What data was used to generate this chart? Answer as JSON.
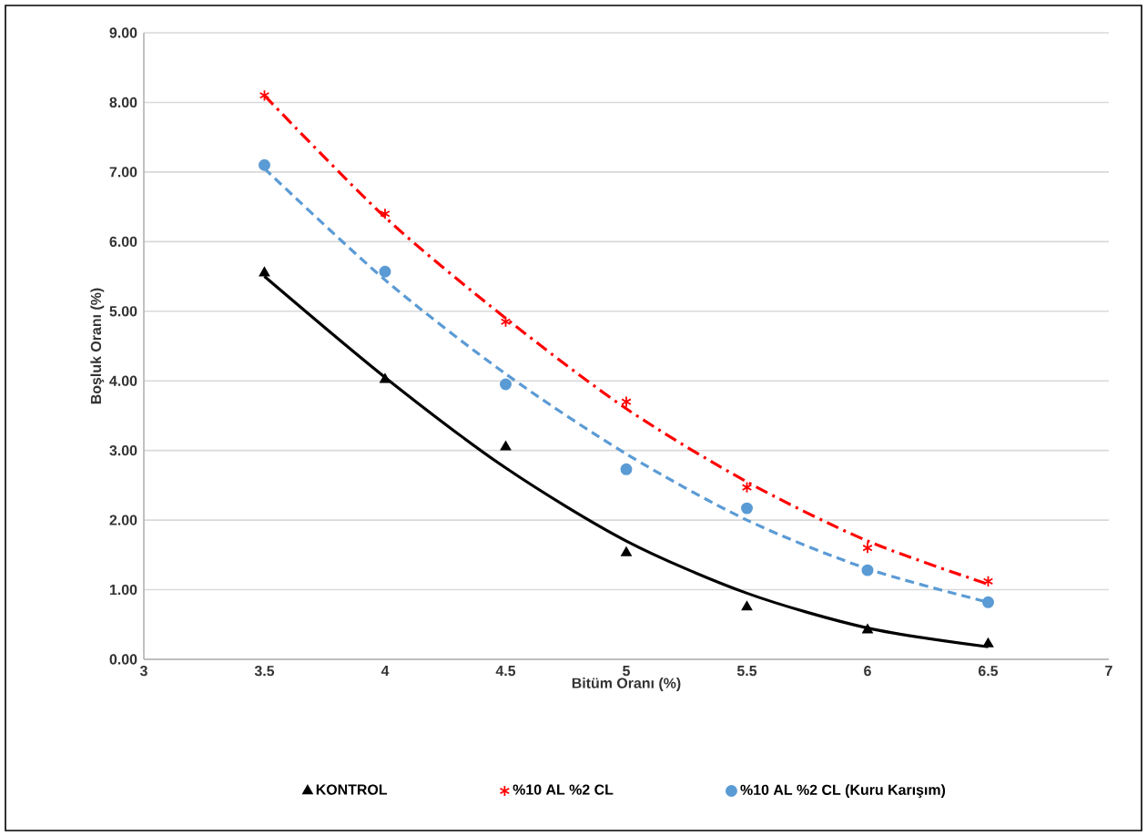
{
  "chart_data": {
    "type": "scatter",
    "xlabel": "Bitüm Oranı (%)",
    "ylabel": "Boşluk Oranı (%)",
    "xlim": [
      3,
      7
    ],
    "xticks": [
      3,
      3.5,
      4,
      4.5,
      5,
      5.5,
      6,
      6.5,
      7
    ],
    "ylim": [
      0,
      9
    ],
    "yticks": [
      {
        "value": 0,
        "label": "0.00"
      },
      {
        "value": 1,
        "label": "1.00"
      },
      {
        "value": 2,
        "label": "2.00"
      },
      {
        "value": 3,
        "label": "3.00"
      },
      {
        "value": 4,
        "label": "4.00"
      },
      {
        "value": 5,
        "label": "5.00"
      },
      {
        "value": 6,
        "label": "6.00"
      },
      {
        "value": 7,
        "label": "7.00"
      },
      {
        "value": 8,
        "label": "8.00"
      },
      {
        "value": 9,
        "label": "9.00"
      }
    ],
    "grid": "y",
    "legend": "bottom",
    "x": [
      3.5,
      4,
      4.5,
      5,
      5.5,
      6,
      6.5
    ],
    "series": [
      {
        "name": "KONTROL",
        "marker": "triangle",
        "color": "#000000",
        "values": [
          5.55,
          4.02,
          3.05,
          1.53,
          0.75,
          0.42,
          0.22
        ]
      },
      {
        "name": "%10 AL %2 CL",
        "marker": "cross",
        "color": "#ff0000",
        "values": [
          8.1,
          6.4,
          4.85,
          3.7,
          2.47,
          1.6,
          1.12
        ]
      },
      {
        "name": "%10 AL %2 CL (Kuru Karışım)",
        "marker": "circle",
        "color": "#5b9bd5",
        "values": [
          7.1,
          5.57,
          3.95,
          2.73,
          2.17,
          1.28,
          0.82
        ]
      },
      {
        "type": "line",
        "line_style": "solid",
        "color": "#000000",
        "values": [
          5.5,
          4.05,
          2.75,
          1.7,
          0.95,
          0.45,
          0.18
        ]
      },
      {
        "type": "line",
        "line_style": "dashdot",
        "color": "#ff0000",
        "values": [
          8.1,
          6.35,
          4.9,
          3.6,
          2.55,
          1.7,
          1.08
        ]
      },
      {
        "type": "line",
        "line_style": "dashed",
        "color": "#5b9bd5",
        "values": [
          7.05,
          5.45,
          4.1,
          2.95,
          2.0,
          1.3,
          0.82
        ]
      }
    ]
  }
}
